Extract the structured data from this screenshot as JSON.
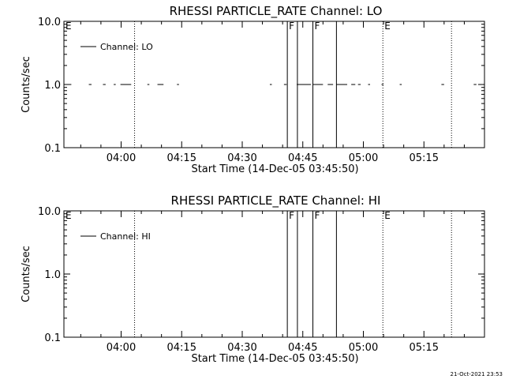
{
  "footer": {
    "timestamp": "21-Oct-2021 23:53"
  },
  "chart_data": [
    {
      "type": "line",
      "title": "RHESSI PARTICLE_RATE Channel: LO",
      "xlabel": "Start Time (14-Dec-05 03:45:50)",
      "ylabel": "Counts/sec",
      "yscale": "log",
      "ylim": [
        0.1,
        10.0
      ],
      "xlim": [
        "03:45:50",
        "05:30:00"
      ],
      "yticks": [
        "0.1",
        "1.0",
        "10.0"
      ],
      "xticks": [
        "04:00",
        "04:15",
        "04:30",
        "04:45",
        "05:00",
        "05:15"
      ],
      "legend": {
        "placement": "top-left",
        "entries": [
          "Channel: LO"
        ]
      },
      "series": [
        {
          "name": "Channel: LO",
          "style": "solid",
          "segments": [
            {
              "x": [
                "03:47:00",
                "03:47:40"
              ],
              "y": 1.0
            },
            {
              "x": [
                "03:52:00",
                "03:52:40"
              ],
              "y": 1.0
            },
            {
              "x": [
                "03:55:30",
                "03:56:10"
              ],
              "y": 1.0
            },
            {
              "x": [
                "03:58:10",
                "03:58:40"
              ],
              "y": 1.0
            },
            {
              "x": [
                "03:59:50",
                "04:02:30"
              ],
              "y": 1.0
            },
            {
              "x": [
                "04:06:30",
                "04:07:00"
              ],
              "y": 1.0
            },
            {
              "x": [
                "04:09:00",
                "04:10:30"
              ],
              "y": 1.0
            },
            {
              "x": [
                "04:13:50",
                "04:14:20"
              ],
              "y": 1.0
            },
            {
              "x": [
                "04:36:50",
                "04:37:20"
              ],
              "y": 1.0
            },
            {
              "x": [
                "04:40:20",
                "04:41:00"
              ],
              "y": 1.0
            },
            {
              "x": [
                "04:43:30",
                "04:47:00"
              ],
              "y": 1.0
            },
            {
              "x": [
                "04:47:30",
                "04:50:00"
              ],
              "y": 1.0
            },
            {
              "x": [
                "04:51:10",
                "04:52:30"
              ],
              "y": 1.0
            },
            {
              "x": [
                "04:53:20",
                "04:56:00"
              ],
              "y": 1.0
            },
            {
              "x": [
                "04:57:00",
                "04:58:00"
              ],
              "y": 1.0
            },
            {
              "x": [
                "04:58:40",
                "04:59:20"
              ],
              "y": 1.0
            },
            {
              "x": [
                "05:01:10",
                "05:01:40"
              ],
              "y": 1.0
            },
            {
              "x": [
                "05:04:30",
                "05:05:00"
              ],
              "y": 1.0
            },
            {
              "x": [
                "05:09:00",
                "05:09:30"
              ],
              "y": 1.0
            },
            {
              "x": [
                "05:19:20",
                "05:20:00"
              ],
              "y": 1.0
            },
            {
              "x": [
                "05:27:20",
                "05:28:00"
              ],
              "y": 1.0
            }
          ]
        }
      ],
      "annotations": [
        {
          "label": "E",
          "time": "03:45:50",
          "style": "dotted"
        },
        {
          "label": "",
          "time": "04:03:20",
          "style": "dotted"
        },
        {
          "label": "F",
          "time": "04:41:10",
          "style": "solid"
        },
        {
          "label": "",
          "time": "04:43:40",
          "style": "solid"
        },
        {
          "label": "F",
          "time": "04:47:30",
          "style": "solid"
        },
        {
          "label": "",
          "time": "04:53:20",
          "style": "solid"
        },
        {
          "label": "E",
          "time": "05:04:50",
          "style": "dotted"
        },
        {
          "label": "",
          "time": "05:21:50",
          "style": "dotted"
        }
      ]
    },
    {
      "type": "line",
      "title": "RHESSI PARTICLE_RATE Channel: HI",
      "xlabel": "Start Time (14-Dec-05 03:45:50)",
      "ylabel": "Counts/sec",
      "yscale": "log",
      "ylim": [
        0.1,
        10.0
      ],
      "xlim": [
        "03:45:50",
        "05:30:00"
      ],
      "yticks": [
        "0.1",
        "1.0",
        "10.0"
      ],
      "xticks": [
        "04:00",
        "04:15",
        "04:30",
        "04:45",
        "05:00",
        "05:15"
      ],
      "legend": {
        "placement": "top-left",
        "entries": [
          "Channel: HI"
        ]
      },
      "series": [
        {
          "name": "Channel: HI",
          "style": "solid",
          "segments": []
        }
      ],
      "annotations": [
        {
          "label": "E",
          "time": "03:45:50",
          "style": "dotted"
        },
        {
          "label": "",
          "time": "04:03:20",
          "style": "dotted"
        },
        {
          "label": "F",
          "time": "04:41:10",
          "style": "solid"
        },
        {
          "label": "",
          "time": "04:43:40",
          "style": "solid"
        },
        {
          "label": "F",
          "time": "04:47:30",
          "style": "solid"
        },
        {
          "label": "",
          "time": "04:53:20",
          "style": "solid"
        },
        {
          "label": "E",
          "time": "05:04:50",
          "style": "dotted"
        },
        {
          "label": "",
          "time": "05:21:50",
          "style": "dotted"
        }
      ]
    }
  ]
}
